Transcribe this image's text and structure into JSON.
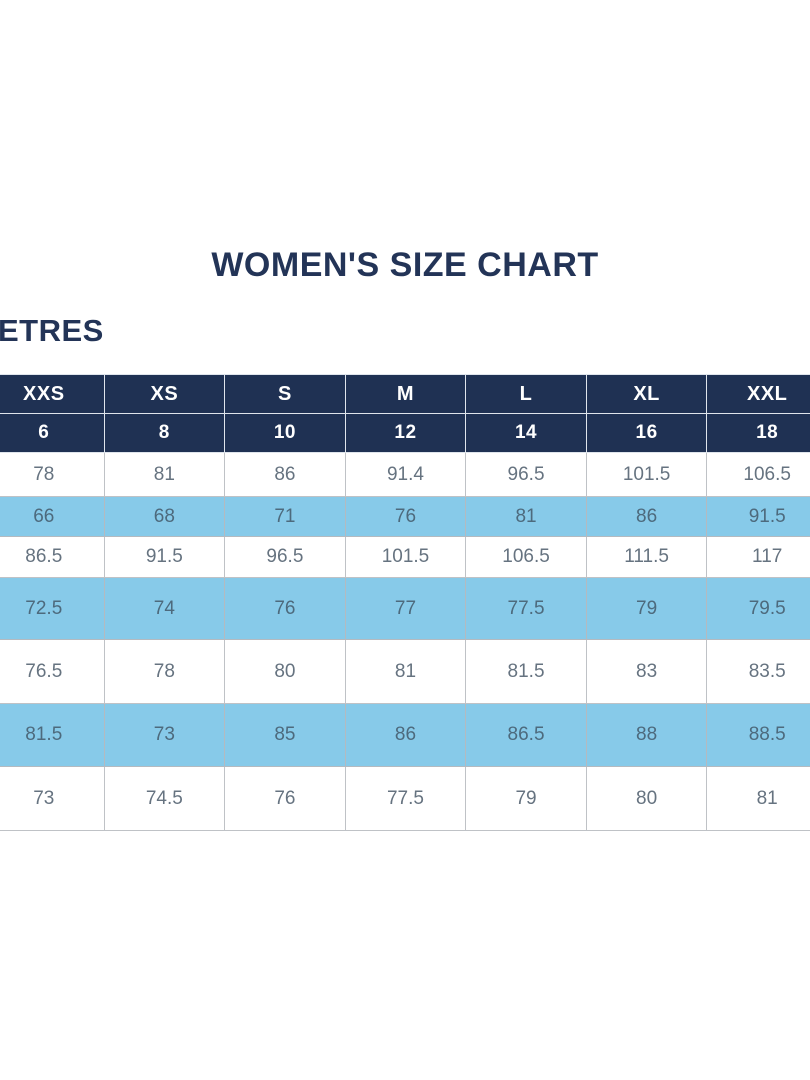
{
  "page": {
    "title": "WOMEN'S SIZE CHART",
    "units_label": "ETRES"
  },
  "table": {
    "size_names": [
      "XXS",
      "XS",
      "S",
      "M",
      "L",
      "XL",
      "XXL"
    ],
    "size_numbers": [
      "6",
      "8",
      "10",
      "12",
      "14",
      "16",
      "18"
    ],
    "rows": [
      [
        "78",
        "81",
        "86",
        "91.4",
        "96.5",
        "101.5",
        "106.5"
      ],
      [
        "66",
        "68",
        "71",
        "76",
        "81",
        "86",
        "91.5"
      ],
      [
        "86.5",
        "91.5",
        "96.5",
        "101.5",
        "106.5",
        "111.5",
        "117"
      ],
      [
        "72.5",
        "74",
        "76",
        "77",
        "77.5",
        "79",
        "79.5"
      ],
      [
        "76.5",
        "78",
        "80",
        "81",
        "81.5",
        "83",
        "83.5"
      ],
      [
        "81.5",
        "73",
        "85",
        "86",
        "86.5",
        "88",
        "88.5"
      ],
      [
        "73",
        "74.5",
        "76",
        "77.5",
        "79",
        "80",
        "81"
      ]
    ]
  },
  "colors": {
    "header_navy": "#1F3153",
    "row_blue": "#87CAE9",
    "title_text": "#233457",
    "data_text": "#667380",
    "data_text_blue_row": "#4D6A7D",
    "header_text": "#FFFFFF",
    "border": "#BFC2C6"
  }
}
